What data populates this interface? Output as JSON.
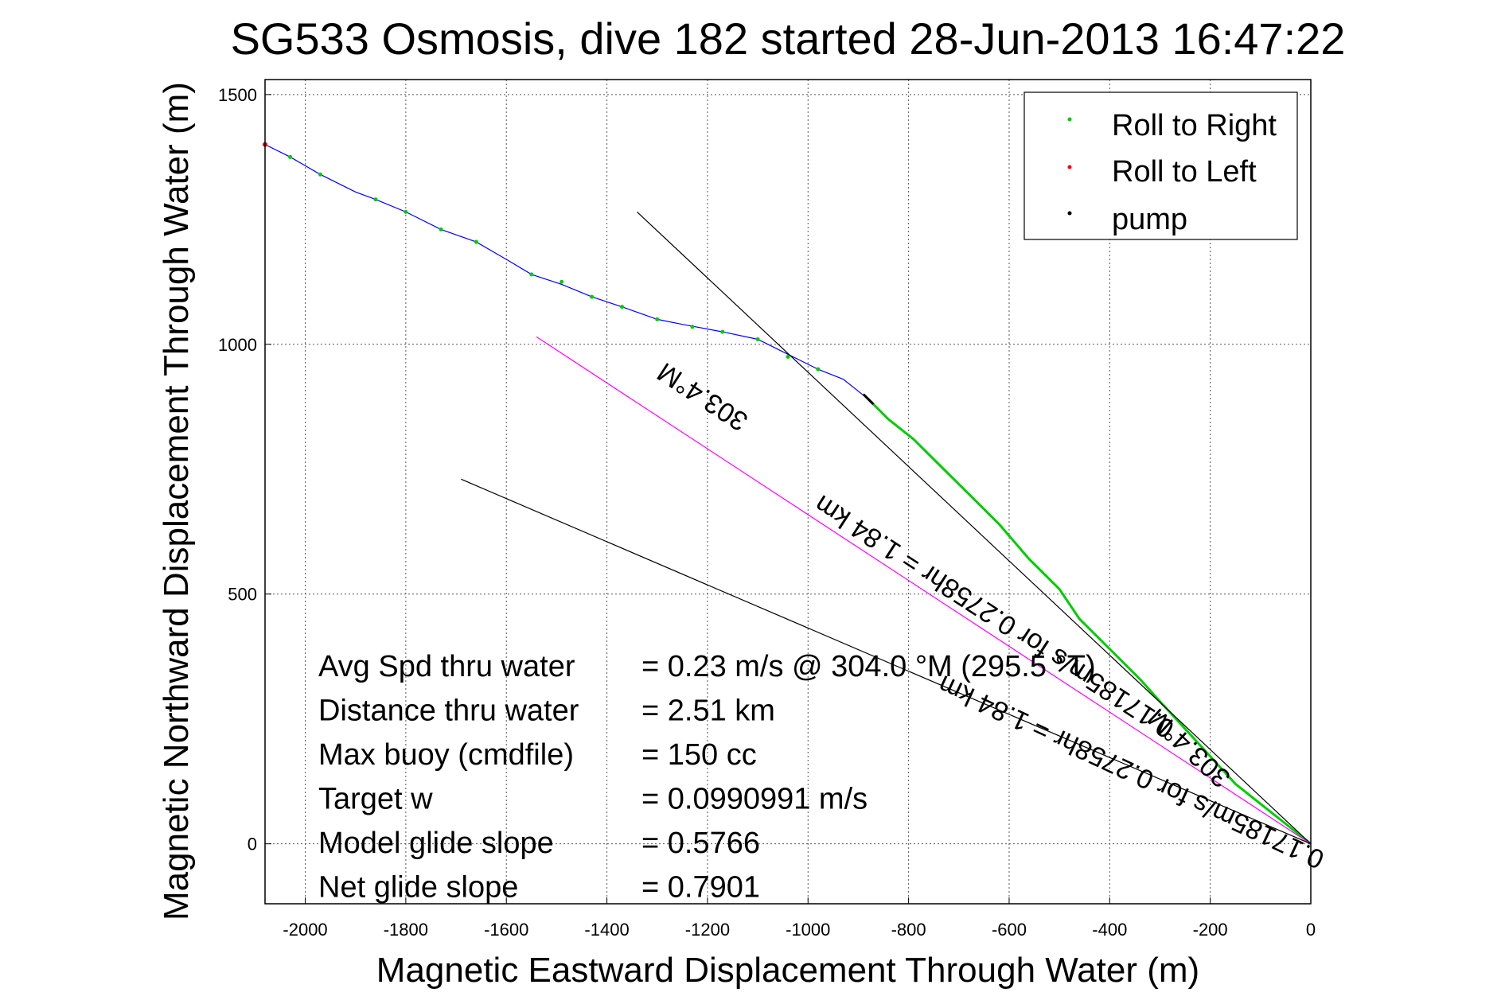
{
  "chart_data": {
    "type": "line",
    "title": "SG533 Osmosis, dive 182 started 28-Jun-2013 16:47:22",
    "xlabel": "Magnetic Eastward Displacement Through Water (m)",
    "ylabel": "Magnetic Northward Displacement Through Water (m)",
    "xlim": [
      -2080,
      0
    ],
    "ylim": [
      -120,
      1530
    ],
    "xticks": [
      -2000,
      -1800,
      -1600,
      -1400,
      -1200,
      -1000,
      -800,
      -600,
      -400,
      -200,
      0
    ],
    "yticks": [
      0,
      500,
      1000,
      1500
    ],
    "xtick_labels": [
      "-2000",
      "-1800",
      "-1600",
      "-1400",
      "-1200",
      "-1000",
      "-800",
      "-600",
      "-400",
      "-200",
      "0"
    ],
    "ytick_labels": [
      "0",
      "500",
      "1000",
      "1500"
    ],
    "grid": true,
    "legend": {
      "position": "top-right",
      "entries": [
        {
          "label": "Roll to Right",
          "color": "#00cc00"
        },
        {
          "label": "Roll to Left",
          "color": "#ff0000"
        },
        {
          "label": "pump",
          "color": "#000000"
        }
      ]
    },
    "series": [
      {
        "name": "track (climb)",
        "color": "#0000ff",
        "x": [
          -2080,
          -2030,
          -1970,
          -1900,
          -1860,
          -1800,
          -1730,
          -1660,
          -1600,
          -1550,
          -1490,
          -1430,
          -1370,
          -1300,
          -1250,
          -1170,
          -1100,
          -1040,
          -980,
          -930,
          -880
        ],
        "y": [
          1400,
          1375,
          1340,
          1305,
          1290,
          1265,
          1230,
          1205,
          1170,
          1140,
          1120,
          1095,
          1075,
          1050,
          1040,
          1025,
          1010,
          980,
          950,
          930,
          890
        ]
      },
      {
        "name": "track (dive)",
        "color": "#00cc00",
        "x": [
          -880,
          -840,
          -790,
          -740,
          -680,
          -620,
          -560,
          -500,
          -460,
          -420,
          -380,
          -340,
          -300,
          -250,
          -200,
          -150,
          -100,
          -50,
          0
        ],
        "y": [
          890,
          850,
          810,
          760,
          700,
          640,
          570,
          510,
          450,
          410,
          370,
          330,
          285,
          230,
          175,
          120,
          80,
          40,
          0
        ]
      },
      {
        "name": "pump",
        "color": "#000000",
        "x": [
          -890,
          -870
        ],
        "y": [
          900,
          880
        ]
      },
      {
        "name": "heading reference 303.4 M",
        "color": "#000000",
        "x": [
          -1340,
          0
        ],
        "y": [
          1265,
          0
        ]
      },
      {
        "name": "forecast 303.4 M",
        "color": "#ff00ff",
        "x": [
          -1540,
          0
        ],
        "y": [
          1015,
          0
        ]
      },
      {
        "name": "current reference",
        "color": "#000000",
        "x": [
          -1690,
          0
        ],
        "y": [
          730,
          0
        ]
      }
    ],
    "markers": {
      "roll_to_right": {
        "x": [
          -2030,
          -1970,
          -1860,
          -1800,
          -1730,
          -1660,
          -1550,
          -1490,
          -1430,
          -1370,
          -1300,
          -1230,
          -1170,
          -1100,
          -1040,
          -980
        ],
        "y": [
          1375,
          1340,
          1290,
          1265,
          1230,
          1205,
          1140,
          1125,
          1095,
          1075,
          1050,
          1035,
          1025,
          1010,
          975,
          950
        ]
      },
      "roll_to_left": {
        "x": [
          -2080
        ],
        "y": [
          1400
        ]
      }
    },
    "annotations": [
      {
        "text": "303.4°M",
        "x": -1200,
        "y": 910,
        "angle": 33
      },
      {
        "text": "0.17185m/s for 0.2758hr = 1.84 km",
        "x": -620,
        "y": 470,
        "angle": 33
      },
      {
        "text": "303.4°M",
        "x": -230,
        "y": 205,
        "angle": 43
      },
      {
        "text": "0.17185m/s for 0.2758hr = 1.84 km",
        "x": -350,
        "y": 160,
        "angle": 25
      }
    ]
  },
  "stats": [
    {
      "label": "Avg Spd thru water",
      "value": "=  0.23 m/s @ 304.0 °M (295.5 °T)"
    },
    {
      "label": "Distance thru water",
      "value": "=  2.51 km"
    },
    {
      "label": "Max buoy (cmdfile)",
      "value": "= 150 cc"
    },
    {
      "label": "Target w",
      "value": "= 0.0990991 m/s"
    },
    {
      "label": "Model glide slope",
      "value": "= 0.5766"
    },
    {
      "label": "Net glide slope",
      "value": "= 0.7901"
    }
  ]
}
